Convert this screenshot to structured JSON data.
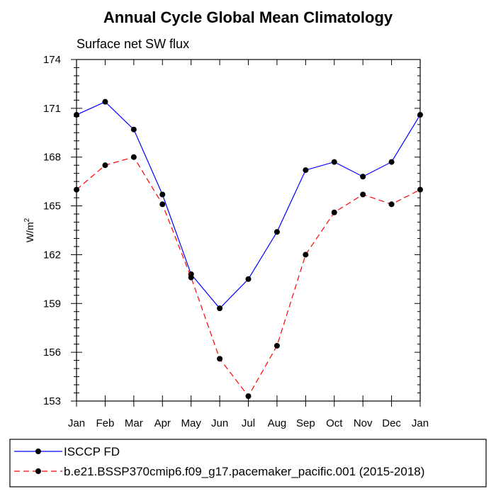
{
  "chart_data": {
    "type": "line",
    "title": "Annual Cycle Global Mean Climatology",
    "subtitle": "Surface net SW flux",
    "ylabel": "W/m",
    "ylabel_superscript": "2",
    "xlabel": "",
    "categories": [
      "Jan",
      "Feb",
      "Mar",
      "Apr",
      "May",
      "Jun",
      "Jul",
      "Aug",
      "Sep",
      "Oct",
      "Nov",
      "Dec",
      "Jan"
    ],
    "ylim": [
      153,
      174
    ],
    "yticks": [
      153,
      156,
      159,
      162,
      165,
      168,
      171,
      174
    ],
    "grid": false,
    "legend_placement": "bottom",
    "series": [
      {
        "name": "ISCCP FD",
        "color": "#0000ff",
        "line_style": "solid",
        "marker": "filled-circle",
        "values": [
          170.6,
          171.4,
          169.7,
          165.7,
          160.8,
          158.7,
          160.5,
          163.4,
          167.2,
          167.7,
          166.8,
          167.7,
          170.6
        ]
      },
      {
        "name": "b.e21.BSSP370cmip6.f09_g17.pacemaker_pacific.001 (2015-2018)",
        "color": "#ff0000",
        "line_style": "dashed",
        "marker": "filled-circle",
        "values": [
          166.0,
          167.5,
          168.0,
          165.1,
          160.6,
          155.6,
          153.3,
          156.4,
          162.0,
          164.6,
          165.7,
          165.1,
          166.0
        ]
      }
    ]
  }
}
